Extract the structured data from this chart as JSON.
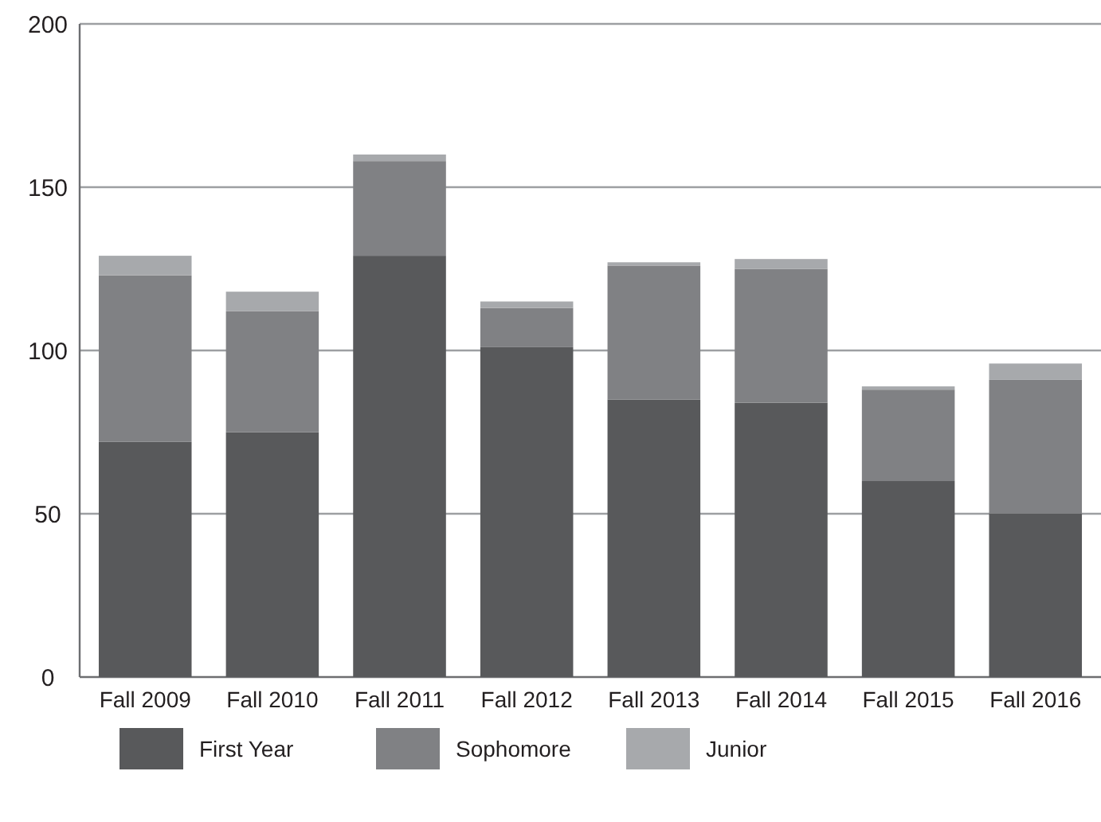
{
  "chart_data": {
    "type": "bar",
    "stacked": true,
    "categories": [
      "Fall 2009",
      "Fall 2010",
      "Fall 2011",
      "Fall 2012",
      "Fall 2013",
      "Fall 2014",
      "Fall 2015",
      "Fall 2016"
    ],
    "series": [
      {
        "name": "First Year",
        "color": "#58595b",
        "values": [
          72,
          75,
          129,
          101,
          85,
          84,
          60,
          50
        ]
      },
      {
        "name": "Sophomore",
        "color": "#808184",
        "values": [
          51,
          37,
          29,
          12,
          41,
          41,
          28,
          41
        ]
      },
      {
        "name": "Junior",
        "color": "#a7a9ac",
        "values": [
          6,
          6,
          2,
          2,
          1,
          3,
          1,
          5
        ]
      }
    ],
    "ylim": [
      0,
      200
    ],
    "yticks": [
      0,
      50,
      100,
      150,
      200
    ],
    "grid": "y",
    "legend": "bottom"
  }
}
